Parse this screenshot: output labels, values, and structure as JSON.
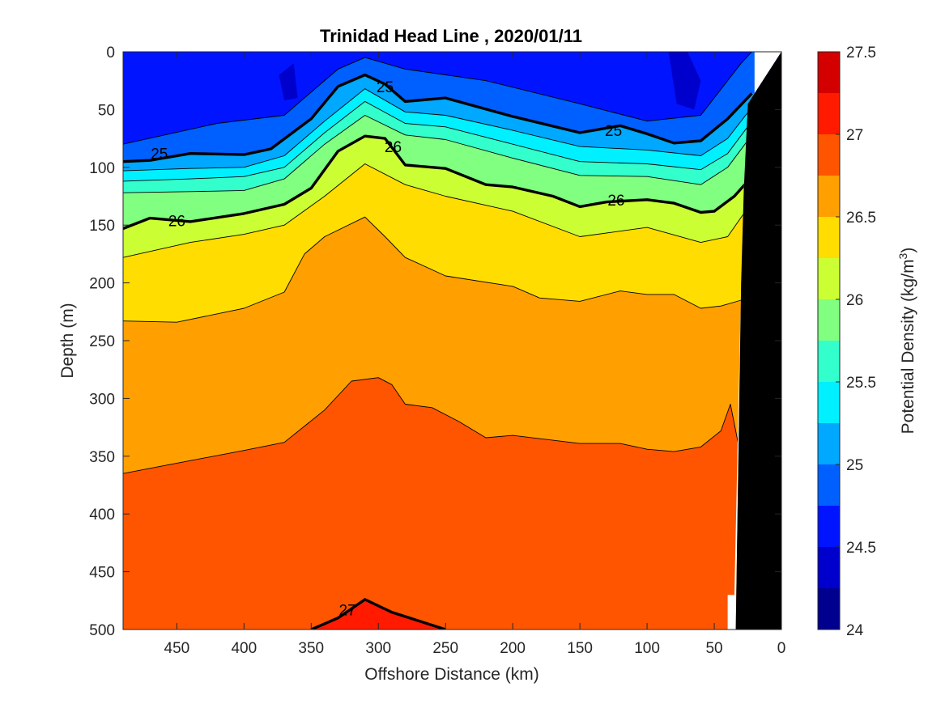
{
  "chart_data": {
    "type": "contour",
    "title": "Trinidad Head Line , 2020/01/11",
    "xlabel": "Offshore Distance (km)",
    "ylabel": "Depth (m)",
    "colorbar_label_main": "Potential Density (kg/m",
    "colorbar_label_sup": "3",
    "colorbar_label_end": ")",
    "xlim": [
      490,
      0
    ],
    "ylim": [
      0,
      500
    ],
    "x_reversed": true,
    "y_reversed": true,
    "xticks": [
      450,
      400,
      350,
      300,
      250,
      200,
      150,
      100,
      50,
      0
    ],
    "yticks": [
      0,
      50,
      100,
      150,
      200,
      250,
      300,
      350,
      400,
      450,
      500
    ],
    "colorbar_ticks": [
      24,
      24.5,
      25,
      25.5,
      26,
      26.5,
      27,
      27.5
    ],
    "colorbar_range": [
      24,
      27.5
    ],
    "colorbar_placement": "right",
    "levels": [
      24,
      24.25,
      24.5,
      24.75,
      25,
      25.25,
      25.5,
      25.75,
      26,
      26.25,
      26.5,
      26.75,
      27,
      27.25,
      27.5
    ],
    "level_colors": [
      "#00008f",
      "#0000cc",
      "#0014ff",
      "#0060ff",
      "#00a8ff",
      "#00f0ff",
      "#33ffcc",
      "#80ff80",
      "#ccff33",
      "#ffdd00",
      "#ffa000",
      "#ff5500",
      "#ff1a00",
      "#d40000"
    ],
    "labeled_levels": [
      25,
      26,
      27
    ],
    "contour_labels": [
      {
        "text": "25",
        "x": 463,
        "y": 88
      },
      {
        "text": "25",
        "x": 295,
        "y": 30
      },
      {
        "text": "25",
        "x": 125,
        "y": 68
      },
      {
        "text": "26",
        "x": 450,
        "y": 146
      },
      {
        "text": "26",
        "x": 289,
        "y": 82
      },
      {
        "text": "26",
        "x": 123,
        "y": 128
      },
      {
        "text": "27",
        "x": 323,
        "y": 483
      }
    ],
    "isopycnals": [
      {
        "level": 24.75,
        "x": [
          490,
          420,
          370,
          330,
          310,
          280,
          220,
          150,
          100,
          60,
          30,
          22
        ],
        "depth": [
          80,
          62,
          55,
          15,
          5,
          15,
          25,
          45,
          60,
          55,
          10,
          0
        ]
      },
      {
        "level": 25.0,
        "x": [
          490,
          470,
          440,
          400,
          380,
          350,
          330,
          310,
          295,
          280,
          250,
          200,
          150,
          120,
          100,
          80,
          60,
          40,
          22
        ],
        "depth": [
          95,
          94,
          88,
          89,
          84,
          58,
          30,
          20,
          28,
          43,
          40,
          56,
          70,
          64,
          71,
          79,
          77,
          58,
          36
        ]
      },
      {
        "level": 25.25,
        "x": [
          490,
          440,
          400,
          370,
          340,
          310,
          280,
          250,
          200,
          150,
          100,
          60,
          40,
          22
        ],
        "depth": [
          103,
          101,
          100,
          90,
          60,
          32,
          52,
          55,
          68,
          82,
          85,
          90,
          75,
          48
        ]
      },
      {
        "level": 25.5,
        "x": [
          490,
          440,
          400,
          370,
          340,
          310,
          280,
          250,
          200,
          150,
          100,
          60,
          40,
          22
        ],
        "depth": [
          112,
          110,
          108,
          100,
          70,
          43,
          62,
          65,
          80,
          95,
          97,
          102,
          88,
          60
        ]
      },
      {
        "level": 25.75,
        "x": [
          490,
          440,
          400,
          370,
          340,
          310,
          280,
          250,
          200,
          150,
          100,
          60,
          40,
          22
        ],
        "depth": [
          122,
          121,
          120,
          110,
          80,
          55,
          72,
          76,
          92,
          107,
          108,
          115,
          100,
          72
        ]
      },
      {
        "level": 26.0,
        "x": [
          490,
          470,
          440,
          400,
          370,
          350,
          330,
          310,
          295,
          280,
          250,
          220,
          200,
          170,
          150,
          130,
          100,
          80,
          60,
          50,
          35,
          22
        ],
        "depth": [
          153,
          144,
          147,
          140,
          132,
          118,
          86,
          73,
          75,
          98,
          101,
          115,
          117,
          125,
          134,
          130,
          128,
          131,
          139,
          138,
          125,
          108
        ]
      },
      {
        "level": 26.25,
        "x": [
          490,
          440,
          400,
          370,
          340,
          310,
          280,
          250,
          200,
          150,
          100,
          60,
          40,
          22
        ],
        "depth": [
          178,
          165,
          158,
          150,
          125,
          97,
          115,
          125,
          138,
          160,
          152,
          165,
          160,
          130
        ]
      },
      {
        "level": 26.5,
        "x": [
          490,
          450,
          400,
          370,
          355,
          340,
          310,
          295,
          280,
          250,
          200,
          180,
          150,
          120,
          100,
          80,
          60,
          45,
          30
        ],
        "depth": [
          233,
          234,
          222,
          208,
          175,
          160,
          143,
          160,
          178,
          194,
          203,
          213,
          216,
          207,
          210,
          210,
          222,
          220,
          215
        ]
      },
      {
        "level": 26.75,
        "x": [
          490,
          450,
          400,
          370,
          340,
          320,
          300,
          290,
          280,
          260,
          240,
          220,
          200,
          150,
          120,
          100,
          80,
          60,
          45,
          38,
          31
        ],
        "depth": [
          365,
          356,
          345,
          338,
          310,
          285,
          282,
          288,
          305,
          308,
          320,
          334,
          332,
          339,
          339,
          344,
          346,
          342,
          328,
          305,
          346
        ]
      },
      {
        "level": 27.0,
        "x": [
          350,
          330,
          310,
          290,
          250
        ],
        "depth": [
          500,
          490,
          474,
          485,
          500
        ]
      }
    ],
    "land_polygon": {
      "x": [
        0,
        25,
        28,
        30,
        34,
        0
      ],
      "depth": [
        0,
        45,
        120,
        200,
        500,
        500
      ]
    },
    "nodata_regions": [
      {
        "x": [
          0,
          20,
          20,
          28,
          30,
          35,
          40,
          40,
          34,
          30,
          28,
          25
        ],
        "depth": [
          0,
          0,
          180,
          190,
          200,
          470,
          470,
          500,
          500,
          200,
          120,
          45
        ]
      }
    ]
  }
}
